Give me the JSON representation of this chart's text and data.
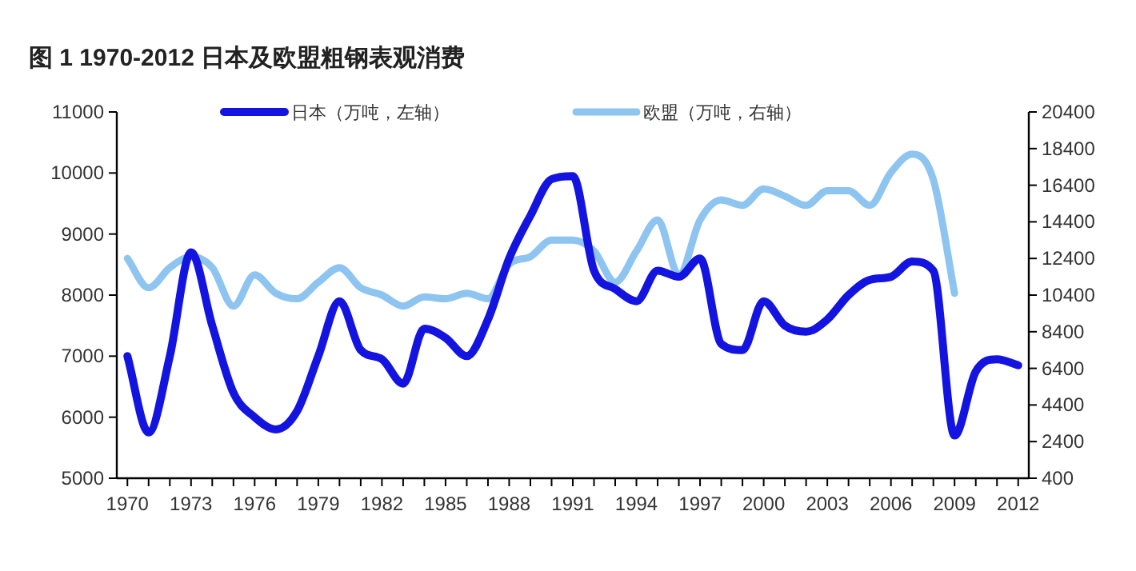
{
  "chart_data": {
    "type": "line",
    "title": "图 1 1970-2012 日本及欧盟粗钢表观消费",
    "x": [
      1970,
      1971,
      1972,
      1973,
      1974,
      1975,
      1976,
      1977,
      1978,
      1979,
      1980,
      1981,
      1982,
      1983,
      1984,
      1985,
      1986,
      1987,
      1988,
      1989,
      1990,
      1991,
      1992,
      1993,
      1994,
      1995,
      1996,
      1997,
      1998,
      1999,
      2000,
      2001,
      2002,
      2003,
      2004,
      2005,
      2006,
      2007,
      2008,
      2009,
      2010,
      2011,
      2012
    ],
    "xlim": [
      1969.5,
      2012.5
    ],
    "xticks": [
      1970,
      {
        "value": 1971,
        "label": null
      },
      {
        "value": 1972,
        "label": null
      },
      1973,
      {
        "value": 1974,
        "label": null
      },
      {
        "value": 1975,
        "label": null
      },
      1976,
      {
        "value": 1977,
        "label": null
      },
      {
        "value": 1978,
        "label": null
      },
      1979,
      {
        "value": 1980,
        "label": null
      },
      {
        "value": 1981,
        "label": null
      },
      1982,
      {
        "value": 1983,
        "label": null
      },
      {
        "value": 1984,
        "label": null
      },
      1985,
      {
        "value": 1986,
        "label": null
      },
      {
        "value": 1987,
        "label": null
      },
      1988,
      {
        "value": 1989,
        "label": null
      },
      {
        "value": 1990,
        "label": null
      },
      1991,
      {
        "value": 1992,
        "label": null
      },
      {
        "value": 1993,
        "label": null
      },
      1994,
      {
        "value": 1995,
        "label": null
      },
      {
        "value": 1996,
        "label": null
      },
      1997,
      {
        "value": 1998,
        "label": null
      },
      {
        "value": 1999,
        "label": null
      },
      2000,
      {
        "value": 2001,
        "label": null
      },
      {
        "value": 2002,
        "label": null
      },
      2003,
      {
        "value": 2004,
        "label": null
      },
      {
        "value": 2005,
        "label": null
      },
      2006,
      {
        "value": 2007,
        "label": null
      },
      {
        "value": 2008,
        "label": null
      },
      2009,
      {
        "value": 2010,
        "label": null
      },
      {
        "value": 2011,
        "label": null
      },
      2012
    ],
    "ylim": [
      5000,
      11000
    ],
    "yticks": [
      5000,
      6000,
      7000,
      8000,
      9000,
      10000,
      11000
    ],
    "y2lim": [
      400,
      20400
    ],
    "y2ticks": [
      400,
      2400,
      4400,
      6400,
      8400,
      10400,
      12400,
      14400,
      16400,
      18400,
      20400
    ],
    "legend": "top",
    "grid": false,
    "marker": "none",
    "line_style": "solid",
    "series": [
      {
        "name": "日本（万吨，左轴）",
        "color": "#1414e0",
        "values": [
          7000,
          5750,
          7000,
          8700,
          7500,
          6400,
          6000,
          5800,
          6100,
          7000,
          7900,
          7100,
          6950,
          6550,
          7450,
          7300,
          7000,
          7600,
          8600,
          9300,
          9900,
          9950,
          8400,
          8100,
          7900,
          8400,
          8300,
          8600,
          7200,
          7100,
          7900,
          7500,
          7400,
          7600,
          8000,
          8250,
          8300,
          8550,
          8400,
          5700,
          6750,
          6950,
          6850
        ]
      },
      {
        "name": "欧盟（万吨，右轴）",
        "color": "#8ec4f0",
        "axis": "y2",
        "values": [
          12400,
          10800,
          11900,
          12500,
          11900,
          9800,
          11500,
          10500,
          10200,
          11100,
          11900,
          10800,
          10400,
          9800,
          10300,
          10200,
          10500,
          10200,
          12100,
          12500,
          13400,
          13400,
          12800,
          11100,
          12800,
          14500,
          11500,
          14500,
          15600,
          15300,
          16200,
          15800,
          15300,
          16100,
          16100,
          15300,
          17100,
          18100,
          16700,
          10500,
          null,
          null,
          null
        ]
      }
    ]
  }
}
